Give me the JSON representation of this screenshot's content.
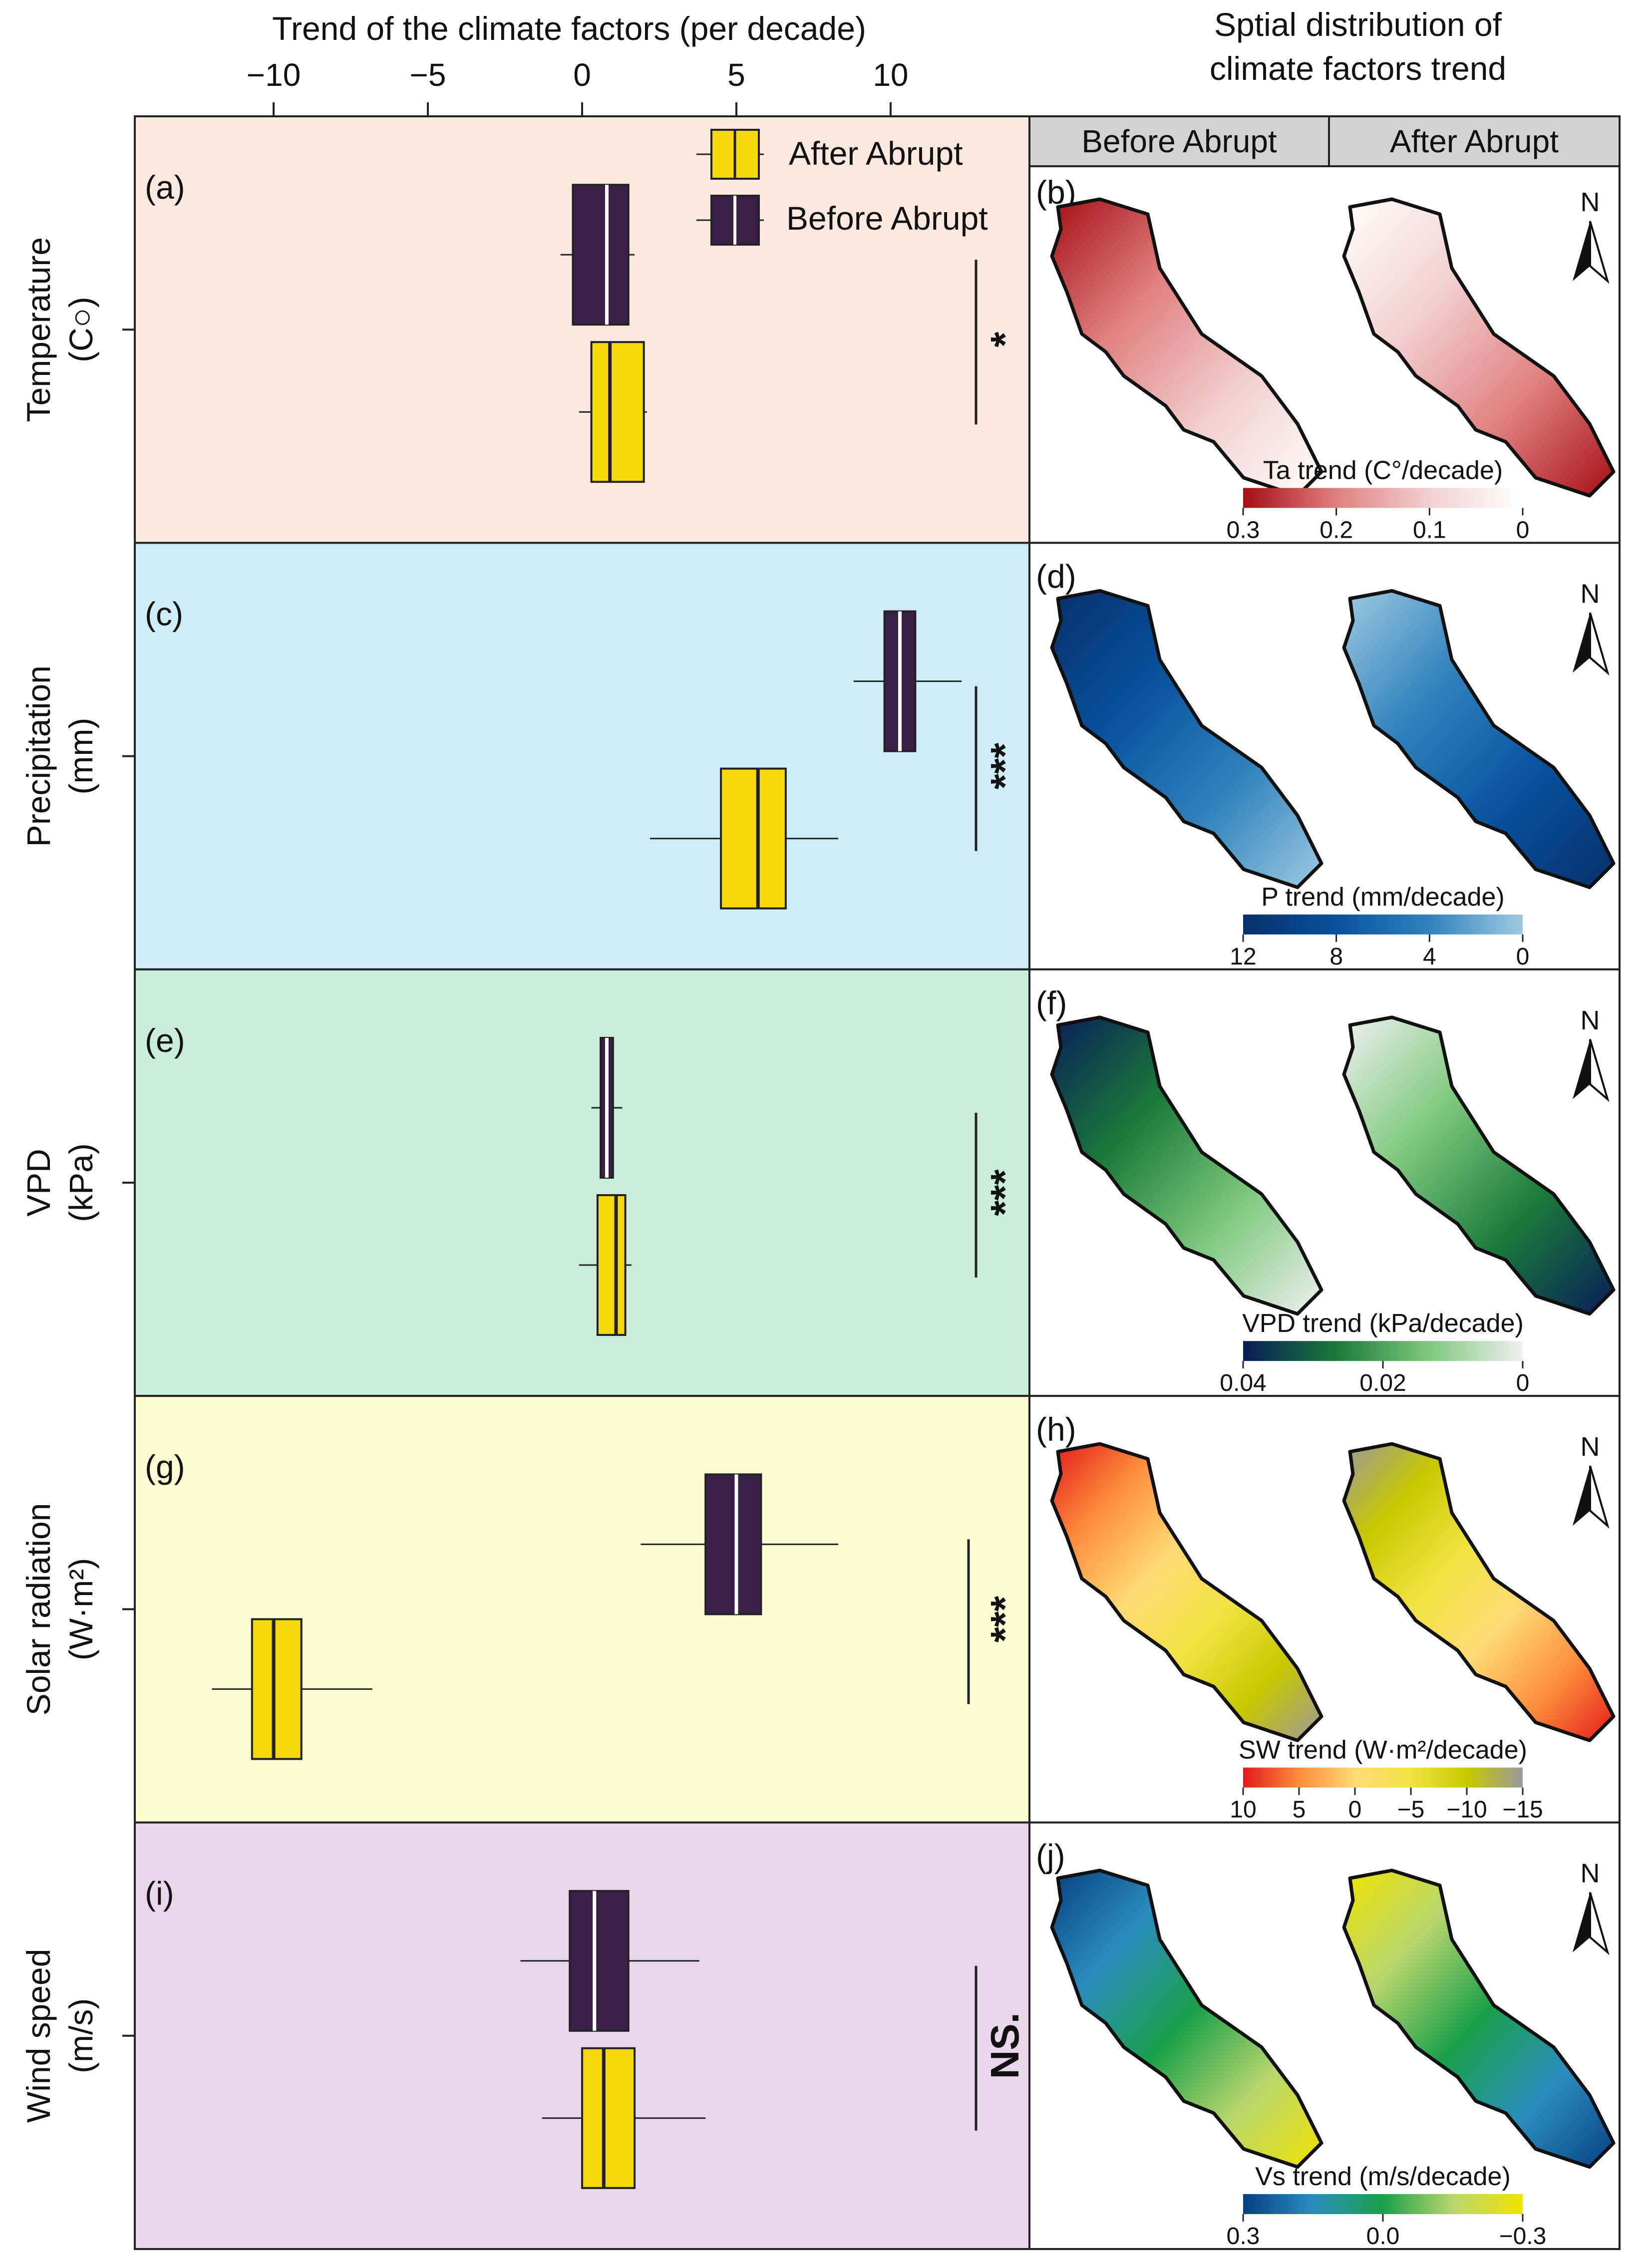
{
  "colors": {
    "before": "#3a1f47",
    "after": "#f5d90a",
    "panel_bg": [
      "#fde9df",
      "#cdeef8",
      "#c8eedb",
      "#fcfbd2",
      "#e9d6ea"
    ],
    "header_bg": "#d3d3d3"
  },
  "header": {
    "right_title_line1": "Sptial distribution of",
    "right_title_line2": "climate factors trend",
    "col_before": "Before Abrupt",
    "col_after": "After Abrupt"
  },
  "legend": {
    "after": "After Abrupt",
    "before": "Before Abrupt"
  },
  "north_label": "N",
  "chart_data": {
    "type": "boxplot",
    "xlabel": "Trend of the climate factors (per decade)",
    "xlim": [
      -14.5,
      14.5
    ],
    "xticks": [
      -10,
      -5,
      0,
      5,
      10
    ],
    "xtick_labels": [
      "−10",
      "−5",
      "0",
      "5",
      "10"
    ],
    "series": [
      {
        "name": "Before Abrupt",
        "color": "#3a1f47"
      },
      {
        "name": "After Abrupt",
        "color": "#f5d90a"
      }
    ],
    "panels": [
      {
        "label": "(a)",
        "map_label": "(b)",
        "ylabel_line1": "Temperature",
        "ylabel_line2": "(C○)",
        "significance": "*",
        "before": {
          "whisker_low": -0.7,
          "q1": -0.3,
          "median": 0.8,
          "q3": 1.5,
          "whisker_high": 1.7
        },
        "after": {
          "whisker_low": -0.1,
          "q1": 0.3,
          "median": 0.9,
          "q3": 2.0,
          "whisker_high": 2.1
        },
        "map_legend": {
          "title": "Ta trend (C°/decade)",
          "ticks": [
            "0.3",
            "0.2",
            "0.1",
            "0"
          ],
          "colors": [
            "#a50f15",
            "#e08080",
            "#f2d0d0",
            "#ffffff"
          ]
        }
      },
      {
        "label": "(c)",
        "map_label": "(d)",
        "ylabel_line1": "Precipitation",
        "ylabel_line2": "(mm)",
        "significance": "***",
        "before": {
          "whisker_low": 8.8,
          "q1": 9.8,
          "median": 10.3,
          "q3": 10.8,
          "whisker_high": 12.3
        },
        "after": {
          "whisker_low": 2.2,
          "q1": 4.5,
          "median": 5.7,
          "q3": 6.6,
          "whisker_high": 8.3
        },
        "map_legend": {
          "title": "P trend (mm/decade)",
          "ticks": [
            "12",
            "8",
            "4",
            "0"
          ],
          "colors": [
            "#08306b",
            "#08519c",
            "#3182bd",
            "#9ecae1"
          ]
        }
      },
      {
        "label": "(e)",
        "map_label": "(f)",
        "ylabel_line1": "VPD",
        "ylabel_line2": "(kPa)",
        "significance": "***",
        "before": {
          "whisker_low": 0.3,
          "q1": 0.6,
          "median": 0.8,
          "q3": 1.0,
          "whisker_high": 1.3
        },
        "after": {
          "whisker_low": -0.1,
          "q1": 0.5,
          "median": 1.1,
          "q3": 1.4,
          "whisker_high": 1.6
        },
        "map_legend": {
          "title": "VPD trend (kPa/decade)",
          "ticks": [
            "0.04",
            "0.02",
            "0"
          ],
          "colors": [
            "#081d58",
            "#1b7a3a",
            "#7fc97f",
            "#f0f0f0"
          ]
        }
      },
      {
        "label": "(g)",
        "map_label": "(h)",
        "ylabel_line1": "Solar radiation",
        "ylabel_line2": "(W·m²)",
        "significance": "***",
        "before": {
          "whisker_low": 1.9,
          "q1": 4.0,
          "median": 5.0,
          "q3": 5.8,
          "whisker_high": 8.3
        },
        "after": {
          "whisker_low": -12.0,
          "q1": -10.7,
          "median": -10.0,
          "q3": -9.1,
          "whisker_high": -6.8
        },
        "map_legend": {
          "title": "SW trend (W·m²/decade)",
          "ticks": [
            "10",
            "5",
            "0",
            "−5",
            "−10",
            "−15"
          ],
          "colors": [
            "#e31a1c",
            "#fd8d3c",
            "#fed976",
            "#f0e442",
            "#c8c800",
            "#999999"
          ]
        }
      },
      {
        "label": "(i)",
        "map_label": "(j)",
        "ylabel_line1": "Wind speed",
        "ylabel_line2": "(m/s)",
        "significance": "NS.",
        "before": {
          "whisker_low": -2.0,
          "q1": -0.4,
          "median": 0.4,
          "q3": 1.5,
          "whisker_high": 3.8
        },
        "after": {
          "whisker_low": -1.3,
          "q1": 0.0,
          "median": 0.7,
          "q3": 1.7,
          "whisker_high": 4.0
        },
        "map_legend": {
          "title": "Vs trend (m/s/decade)",
          "ticks": [
            "0.3",
            "0.0",
            "−0.3"
          ],
          "colors": [
            "#084081",
            "#2b8cbe",
            "#1aa04a",
            "#b8d66e",
            "#f0e400"
          ]
        }
      }
    ]
  }
}
